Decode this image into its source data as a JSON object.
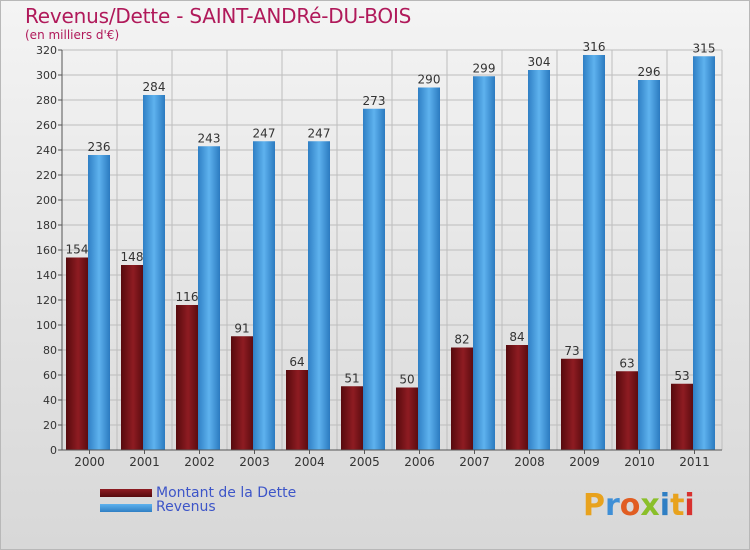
{
  "chart_data": {
    "type": "bar",
    "title": "Revenus/Dette - SAINT-ANDRé-DU-BOIS",
    "subtitle": "(en milliers d'€)",
    "categories": [
      "2000",
      "2001",
      "2002",
      "2003",
      "2004",
      "2005",
      "2006",
      "2007",
      "2008",
      "2009",
      "2010",
      "2011"
    ],
    "series": [
      {
        "name": "Montant de la Dette",
        "color": "#7a1418",
        "values": [
          154,
          148,
          116,
          91,
          64,
          51,
          50,
          82,
          84,
          73,
          63,
          53
        ]
      },
      {
        "name": "Revenus",
        "color": "#3b96dc",
        "values": [
          236,
          284,
          243,
          247,
          247,
          273,
          290,
          299,
          304,
          316,
          296,
          315
        ]
      }
    ],
    "ylim": [
      0,
      320
    ],
    "ytick_step": 20,
    "grid": true,
    "legend_position": "bottom-left"
  },
  "logo_text": "Proxiti",
  "colors": {
    "title": "#b0195a",
    "legend_text": "#3d55c8",
    "grid": "#bdbdbd"
  }
}
